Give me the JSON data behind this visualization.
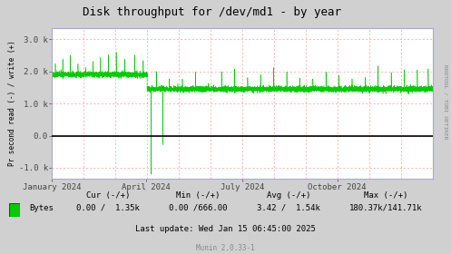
{
  "title": "Disk throughput for /dev/md1 - by year",
  "ylabel": "Pr second read (-) / write (+)",
  "xlabel_ticks": [
    "January 2024",
    "April 2024",
    "July 2024",
    "October 2024"
  ],
  "xlabel_tick_positions": [
    0.0,
    0.247,
    0.499,
    0.749
  ],
  "yticks": [
    -1000,
    0,
    1000,
    2000,
    3000
  ],
  "ytick_labels": [
    "-1.0 k",
    "0.0",
    "1.0 k",
    "2.0 k",
    "3.0 k"
  ],
  "ylim_low": -1350,
  "ylim_high": 3350,
  "background_color": "#d0d0d0",
  "plot_bg_color": "#ffffff",
  "line_color": "#00cc00",
  "zero_line_color": "#000000",
  "vgrid_color": "#ff9999",
  "hgrid_color": "#ff9999",
  "border_color": "#aaaacc",
  "right_label": "RRDTOOL / TOBI OETIKER",
  "legend_label": "Bytes",
  "legend_cur": "0.00 /  1.35k",
  "legend_min": "0.00 /666.00",
  "legend_avg": "3.42 /  1.54k",
  "legend_max": "180.37k/141.71k",
  "footer": "Last update: Wed Jan 15 06:45:00 2025",
  "munin_version": "Munin 2.0.33-1"
}
